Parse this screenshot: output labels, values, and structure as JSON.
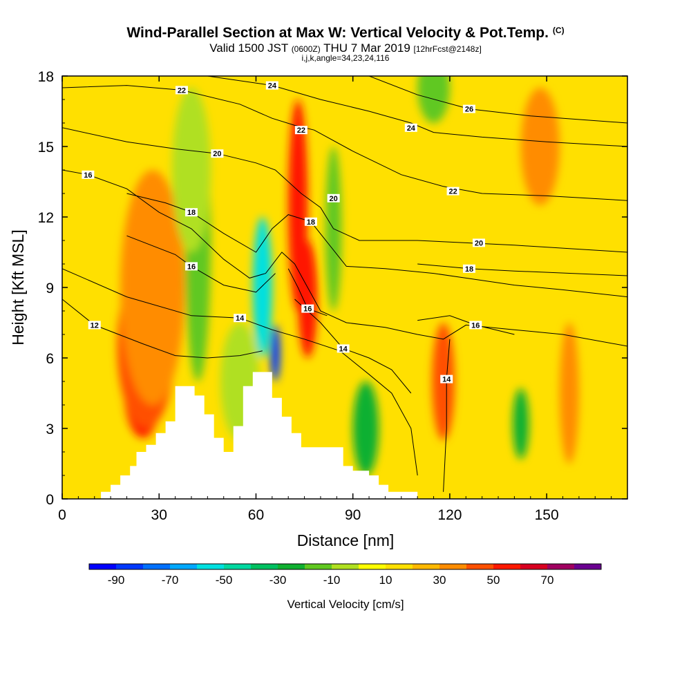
{
  "header": {
    "title": "Wind-Parallel Section at Max W: Vertical Velocity & Pot.Temp.",
    "copyright": "(C)",
    "valid_prefix": "Valid 1500 JST",
    "valid_utc": "(0600Z)",
    "valid_date": "THU 7 Mar 2019",
    "forecast_info": "[12hrFcst@2148z]",
    "indices": "i,j,k,angle=34,23,24,116"
  },
  "colors": {
    "bins": [
      {
        "from": -100,
        "to": -90,
        "color": "#0000ff"
      },
      {
        "from": -90,
        "to": -80,
        "color": "#0038ff"
      },
      {
        "from": -80,
        "to": -70,
        "color": "#0070ff"
      },
      {
        "from": -70,
        "to": -60,
        "color": "#00a8ff"
      },
      {
        "from": -60,
        "to": -50,
        "color": "#00e0e0"
      },
      {
        "from": -50,
        "to": -40,
        "color": "#00d8a0"
      },
      {
        "from": -40,
        "to": -30,
        "color": "#00c060"
      },
      {
        "from": -30,
        "to": -20,
        "color": "#10b030"
      },
      {
        "from": -20,
        "to": -10,
        "color": "#60c820"
      },
      {
        "from": -10,
        "to": 0,
        "color": "#b0e020"
      },
      {
        "from": 0,
        "to": 10,
        "color": "#ffff00"
      },
      {
        "from": 10,
        "to": 20,
        "color": "#ffe000"
      },
      {
        "from": 20,
        "to": 30,
        "color": "#ffb800"
      },
      {
        "from": 30,
        "to": 40,
        "color": "#ff8c00"
      },
      {
        "from": 40,
        "to": 50,
        "color": "#ff5000"
      },
      {
        "from": 50,
        "to": 60,
        "color": "#ff1800"
      },
      {
        "from": 60,
        "to": 70,
        "color": "#d80020"
      },
      {
        "from": 70,
        "to": 80,
        "color": "#a00060"
      },
      {
        "from": 80,
        "to": 90,
        "color": "#6a0090"
      }
    ],
    "terrain": "#ffffff",
    "contour": "#000000"
  },
  "chart_data": {
    "type": "heatmap",
    "xlabel": "Distance [nm]",
    "ylabel": "Height [Kft MSL]",
    "xlim": [
      0,
      175
    ],
    "ylim": [
      0,
      18
    ],
    "xticks": [
      0,
      30,
      60,
      90,
      120,
      150
    ],
    "yticks": [
      0,
      3,
      6,
      9,
      12,
      15,
      18
    ],
    "colorbar": {
      "label": "Vertical Velocity [cm/s]",
      "tick_labels": [
        "-90",
        "-70",
        "-50",
        "-30",
        "-10",
        "10",
        "30",
        "50",
        "70"
      ],
      "tick_values": [
        -90,
        -70,
        -50,
        -30,
        -10,
        10,
        30,
        50,
        70
      ]
    },
    "shaded_field": "Vertical Velocity",
    "contour_field": "Pot.Temp.",
    "shaded_features": [
      {
        "x": 25,
        "y": 4.8,
        "value": 55,
        "rx": 6,
        "ry": 2.2
      },
      {
        "x": 26,
        "y": 6.5,
        "value": 45,
        "rx": 9,
        "ry": 3.5
      },
      {
        "x": 28,
        "y": 9.0,
        "value": 35,
        "rx": 10,
        "ry": 5.0
      },
      {
        "x": 42,
        "y": 11.0,
        "value": -15,
        "rx": 4,
        "ry": 6.0
      },
      {
        "x": 40,
        "y": 14.0,
        "value": -8,
        "rx": 6,
        "ry": 3.5
      },
      {
        "x": 55,
        "y": 5.0,
        "value": -8,
        "rx": 6,
        "ry": 2.5
      },
      {
        "x": 62,
        "y": 9.0,
        "value": -60,
        "rx": 3,
        "ry": 3.0
      },
      {
        "x": 66,
        "y": 6.2,
        "value": -90,
        "rx": 1.5,
        "ry": 1.2
      },
      {
        "x": 72,
        "y": 13.5,
        "value": 80,
        "rx": 1.5,
        "ry": 1.5
      },
      {
        "x": 73,
        "y": 12.5,
        "value": 55,
        "rx": 3,
        "ry": 4.5
      },
      {
        "x": 76,
        "y": 8.5,
        "value": 50,
        "rx": 3,
        "ry": 2.5
      },
      {
        "x": 84,
        "y": 11.5,
        "value": -12,
        "rx": 2.5,
        "ry": 3.5
      },
      {
        "x": 94,
        "y": 3.0,
        "value": -30,
        "rx": 4,
        "ry": 2.0
      },
      {
        "x": 118,
        "y": 5.0,
        "value": 40,
        "rx": 3.5,
        "ry": 2.5
      },
      {
        "x": 142,
        "y": 3.2,
        "value": -30,
        "rx": 2.5,
        "ry": 1.5
      },
      {
        "x": 157,
        "y": 4.5,
        "value": 30,
        "rx": 3,
        "ry": 3.0
      },
      {
        "x": 115,
        "y": 17.5,
        "value": -12,
        "rx": 5,
        "ry": 1.5
      },
      {
        "x": 148,
        "y": 15.0,
        "value": 30,
        "rx": 6,
        "ry": 2.5
      }
    ],
    "terrain": [
      [
        12,
        0.0
      ],
      [
        12,
        0.3
      ],
      [
        15,
        0.3
      ],
      [
        15,
        0.6
      ],
      [
        18,
        0.6
      ],
      [
        18,
        1.0
      ],
      [
        21,
        1.0
      ],
      [
        21,
        1.4
      ],
      [
        23,
        1.4
      ],
      [
        23,
        2.0
      ],
      [
        26,
        2.0
      ],
      [
        26,
        2.3
      ],
      [
        29,
        2.3
      ],
      [
        29,
        2.8
      ],
      [
        32,
        2.8
      ],
      [
        32,
        3.3
      ],
      [
        35,
        3.3
      ],
      [
        35,
        4.8
      ],
      [
        41,
        4.8
      ],
      [
        41,
        4.4
      ],
      [
        44,
        4.4
      ],
      [
        44,
        3.6
      ],
      [
        47,
        3.6
      ],
      [
        47,
        2.6
      ],
      [
        50,
        2.6
      ],
      [
        50,
        2.0
      ],
      [
        53,
        2.0
      ],
      [
        53,
        3.1
      ],
      [
        56,
        3.1
      ],
      [
        56,
        4.8
      ],
      [
        59,
        4.8
      ],
      [
        59,
        5.4
      ],
      [
        65,
        5.4
      ],
      [
        65,
        4.3
      ],
      [
        68,
        4.3
      ],
      [
        68,
        3.5
      ],
      [
        71,
        3.5
      ],
      [
        71,
        2.8
      ],
      [
        74,
        2.8
      ],
      [
        74,
        2.2
      ],
      [
        80,
        2.2
      ],
      [
        80,
        2.2
      ],
      [
        87,
        2.2
      ],
      [
        87,
        1.4
      ],
      [
        90,
        1.4
      ],
      [
        90,
        1.2
      ],
      [
        95,
        1.2
      ],
      [
        95,
        1.0
      ],
      [
        98,
        1.0
      ],
      [
        98,
        0.6
      ],
      [
        101,
        0.6
      ],
      [
        101,
        0.3
      ],
      [
        110,
        0.3
      ],
      [
        110,
        0.0
      ]
    ],
    "isotherms": [
      {
        "label": "12",
        "label_at": [
          10,
          7.4
        ],
        "points": [
          [
            0,
            8.5
          ],
          [
            10,
            7.4
          ],
          [
            25,
            6.6
          ],
          [
            35,
            6.1
          ],
          [
            45,
            6.0
          ],
          [
            55,
            6.1
          ],
          [
            62,
            6.3
          ]
        ]
      },
      {
        "label": "14",
        "label_at": [
          55,
          7.7
        ],
        "points": [
          [
            0,
            9.8
          ],
          [
            20,
            8.6
          ],
          [
            40,
            7.8
          ],
          [
            55,
            7.7
          ],
          [
            65,
            7.2
          ],
          [
            75,
            6.8
          ],
          [
            86,
            6.3
          ],
          [
            95,
            5.3
          ],
          [
            102,
            4.5
          ],
          [
            108,
            3.0
          ],
          [
            110,
            1.0
          ]
        ]
      },
      {
        "label": "14",
        "label_at": [
          87,
          6.4
        ],
        "points": [
          [
            72,
            8.5
          ],
          [
            80,
            7.5
          ],
          [
            87,
            6.4
          ],
          [
            95,
            6.0
          ],
          [
            102,
            5.5
          ],
          [
            108,
            4.5
          ]
        ]
      },
      {
        "label": "14",
        "label_at": [
          119,
          5.1
        ],
        "points": [
          [
            120,
            6.8
          ],
          [
            119,
            5.1
          ],
          [
            119,
            3.0
          ],
          [
            118,
            0.3
          ]
        ]
      },
      {
        "label": "16",
        "label_at": [
          8,
          13.8
        ],
        "points": [
          [
            0,
            14.0
          ],
          [
            8,
            13.8
          ],
          [
            20,
            13.2
          ],
          [
            30,
            12.2
          ],
          [
            40,
            11.5
          ],
          [
            50,
            10.2
          ],
          [
            58,
            9.4
          ],
          [
            63,
            9.6
          ],
          [
            68,
            10.5
          ],
          [
            72,
            10.0
          ],
          [
            76,
            9.0
          ],
          [
            80,
            8.0
          ],
          [
            88,
            7.5
          ],
          [
            100,
            7.3
          ],
          [
            110,
            7.0
          ],
          [
            118,
            6.8
          ],
          [
            125,
            7.4
          ],
          [
            140,
            7.2
          ],
          [
            155,
            7.0
          ],
          [
            175,
            6.5
          ]
        ]
      },
      {
        "label": "16",
        "label_at": [
          40,
          9.9
        ],
        "points": [
          [
            20,
            11.2
          ],
          [
            35,
            10.4
          ],
          [
            40,
            9.9
          ],
          [
            50,
            9.1
          ],
          [
            60,
            8.8
          ],
          [
            66,
            9.6
          ]
        ]
      },
      {
        "label": "16",
        "label_at": [
          76,
          8.1
        ],
        "points": [
          [
            70,
            9.8
          ],
          [
            73,
            9.0
          ],
          [
            76,
            8.1
          ],
          [
            82,
            7.8
          ]
        ]
      },
      {
        "label": "16",
        "label_at": [
          128,
          7.4
        ],
        "points": [
          [
            110,
            7.6
          ],
          [
            120,
            7.8
          ],
          [
            128,
            7.4
          ],
          [
            140,
            7.0
          ]
        ]
      },
      {
        "label": "18",
        "label_at": [
          40,
          12.2
        ],
        "points": [
          [
            20,
            13.0
          ],
          [
            32,
            12.6
          ],
          [
            40,
            12.2
          ],
          [
            50,
            11.3
          ],
          [
            60,
            10.5
          ],
          [
            65,
            11.5
          ],
          [
            70,
            12.1
          ],
          [
            77,
            11.8
          ],
          [
            88,
            9.9
          ],
          [
            100,
            9.8
          ],
          [
            115,
            9.6
          ],
          [
            125,
            9.4
          ],
          [
            140,
            9.1
          ],
          [
            155,
            8.9
          ],
          [
            175,
            8.6
          ]
        ]
      },
      {
        "label": "18",
        "label_at": [
          77,
          11.8
        ],
        "points": [
          [
            77,
            11.8
          ]
        ]
      },
      {
        "label": "18",
        "label_at": [
          126,
          9.8
        ],
        "points": [
          [
            110,
            10.0
          ],
          [
            126,
            9.8
          ],
          [
            140,
            9.7
          ],
          [
            175,
            9.5
          ]
        ]
      },
      {
        "label": "20",
        "label_at": [
          48,
          14.7
        ],
        "points": [
          [
            0,
            15.8
          ],
          [
            20,
            15.2
          ],
          [
            35,
            14.9
          ],
          [
            48,
            14.7
          ],
          [
            60,
            14.3
          ],
          [
            66,
            14.0
          ],
          [
            70,
            13.5
          ],
          [
            74,
            13.0
          ],
          [
            80,
            12.4
          ],
          [
            84,
            11.5
          ],
          [
            92,
            11.0
          ],
          [
            110,
            11.0
          ],
          [
            125,
            10.9
          ],
          [
            140,
            10.8
          ],
          [
            175,
            10.5
          ]
        ]
      },
      {
        "label": "20",
        "label_at": [
          84,
          12.8
        ],
        "points": [
          [
            84,
            12.8
          ]
        ]
      },
      {
        "label": "20",
        "label_at": [
          129,
          10.9
        ],
        "points": [
          [
            129,
            10.9
          ]
        ]
      },
      {
        "label": "22",
        "label_at": [
          37,
          17.4
        ],
        "points": [
          [
            0,
            17.5
          ],
          [
            20,
            17.6
          ],
          [
            37,
            17.4
          ],
          [
            55,
            16.8
          ],
          [
            65,
            16.2
          ],
          [
            72,
            15.9
          ],
          [
            78,
            15.7
          ],
          [
            90,
            14.8
          ],
          [
            105,
            13.8
          ],
          [
            118,
            13.3
          ],
          [
            130,
            13.0
          ],
          [
            150,
            12.9
          ],
          [
            175,
            12.7
          ]
        ]
      },
      {
        "label": "22",
        "label_at": [
          74,
          15.7
        ],
        "points": [
          [
            74,
            15.7
          ]
        ]
      },
      {
        "label": "22",
        "label_at": [
          121,
          13.1
        ],
        "points": [
          [
            121,
            13.1
          ]
        ]
      },
      {
        "label": "24",
        "label_at": [
          65,
          17.6
        ],
        "points": [
          [
            45,
            18.0
          ],
          [
            65,
            17.6
          ],
          [
            80,
            17.0
          ],
          [
            95,
            16.5
          ],
          [
            108,
            16.0
          ],
          [
            115,
            15.6
          ],
          [
            130,
            15.4
          ],
          [
            150,
            15.2
          ],
          [
            175,
            15.0
          ]
        ]
      },
      {
        "label": "24",
        "label_at": [
          108,
          15.8
        ],
        "points": [
          [
            108,
            15.8
          ]
        ]
      },
      {
        "label": "26",
        "label_at": [
          126,
          16.6
        ],
        "points": [
          [
            95,
            18.0
          ],
          [
            110,
            17.2
          ],
          [
            126,
            16.6
          ],
          [
            145,
            16.3
          ],
          [
            175,
            16.0
          ]
        ]
      }
    ]
  }
}
